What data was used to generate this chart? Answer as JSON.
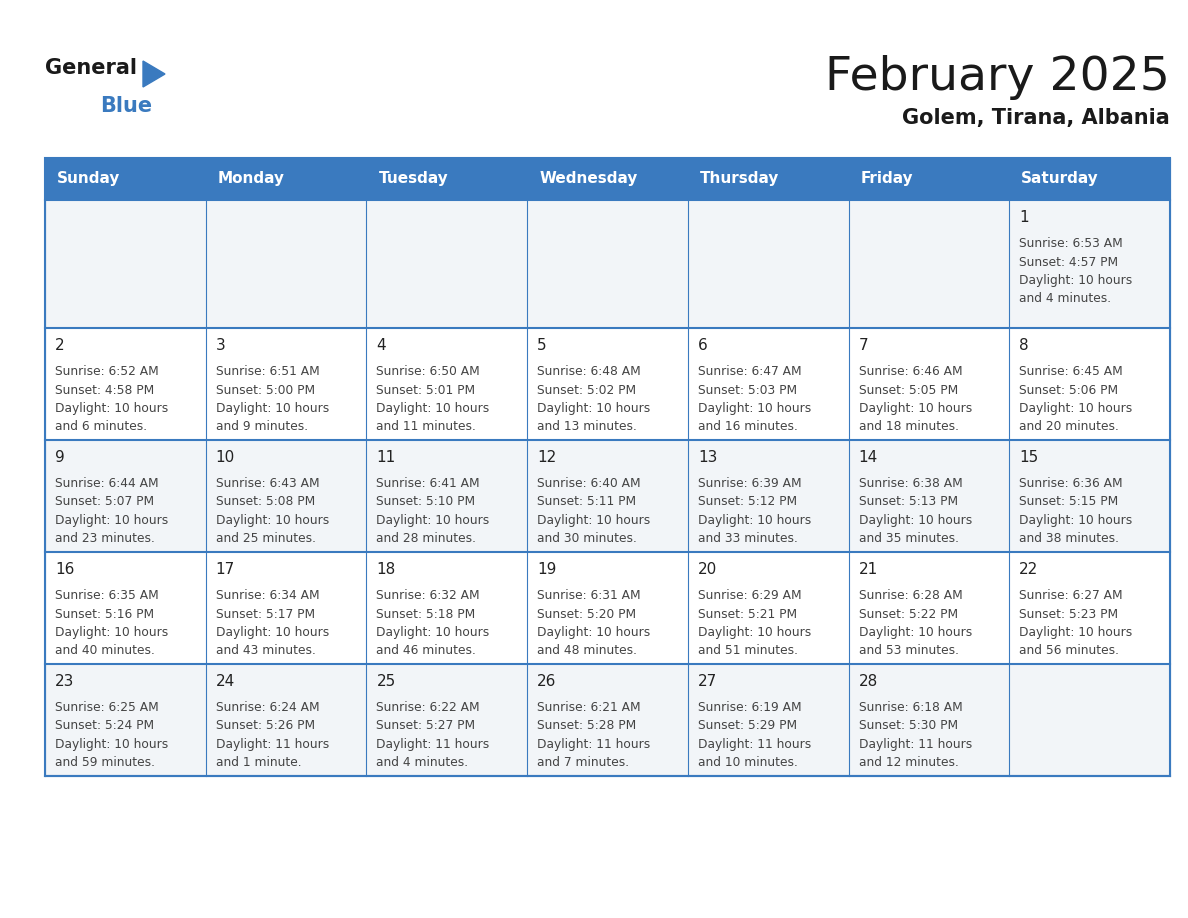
{
  "title": "February 2025",
  "subtitle": "Golem, Tirana, Albania",
  "header_color": "#3a7abf",
  "header_text_color": "#ffffff",
  "days_of_week": [
    "Sunday",
    "Monday",
    "Tuesday",
    "Wednesday",
    "Thursday",
    "Friday",
    "Saturday"
  ],
  "background_color": "#ffffff",
  "cell_bg_odd": "#f2f5f8",
  "cell_bg_even": "#ffffff",
  "border_color": "#3a7abf",
  "text_color": "#444444",
  "day_num_color": "#222222",
  "calendar_data": [
    [
      null,
      null,
      null,
      null,
      null,
      null,
      {
        "day": "1",
        "sunrise": "6:53 AM",
        "sunset": "4:57 PM",
        "daylight_line1": "Daylight: 10 hours",
        "daylight_line2": "and 4 minutes."
      }
    ],
    [
      {
        "day": "2",
        "sunrise": "6:52 AM",
        "sunset": "4:58 PM",
        "daylight_line1": "Daylight: 10 hours",
        "daylight_line2": "and 6 minutes."
      },
      {
        "day": "3",
        "sunrise": "6:51 AM",
        "sunset": "5:00 PM",
        "daylight_line1": "Daylight: 10 hours",
        "daylight_line2": "and 9 minutes."
      },
      {
        "day": "4",
        "sunrise": "6:50 AM",
        "sunset": "5:01 PM",
        "daylight_line1": "Daylight: 10 hours",
        "daylight_line2": "and 11 minutes."
      },
      {
        "day": "5",
        "sunrise": "6:48 AM",
        "sunset": "5:02 PM",
        "daylight_line1": "Daylight: 10 hours",
        "daylight_line2": "and 13 minutes."
      },
      {
        "day": "6",
        "sunrise": "6:47 AM",
        "sunset": "5:03 PM",
        "daylight_line1": "Daylight: 10 hours",
        "daylight_line2": "and 16 minutes."
      },
      {
        "day": "7",
        "sunrise": "6:46 AM",
        "sunset": "5:05 PM",
        "daylight_line1": "Daylight: 10 hours",
        "daylight_line2": "and 18 minutes."
      },
      {
        "day": "8",
        "sunrise": "6:45 AM",
        "sunset": "5:06 PM",
        "daylight_line1": "Daylight: 10 hours",
        "daylight_line2": "and 20 minutes."
      }
    ],
    [
      {
        "day": "9",
        "sunrise": "6:44 AM",
        "sunset": "5:07 PM",
        "daylight_line1": "Daylight: 10 hours",
        "daylight_line2": "and 23 minutes."
      },
      {
        "day": "10",
        "sunrise": "6:43 AM",
        "sunset": "5:08 PM",
        "daylight_line1": "Daylight: 10 hours",
        "daylight_line2": "and 25 minutes."
      },
      {
        "day": "11",
        "sunrise": "6:41 AM",
        "sunset": "5:10 PM",
        "daylight_line1": "Daylight: 10 hours",
        "daylight_line2": "and 28 minutes."
      },
      {
        "day": "12",
        "sunrise": "6:40 AM",
        "sunset": "5:11 PM",
        "daylight_line1": "Daylight: 10 hours",
        "daylight_line2": "and 30 minutes."
      },
      {
        "day": "13",
        "sunrise": "6:39 AM",
        "sunset": "5:12 PM",
        "daylight_line1": "Daylight: 10 hours",
        "daylight_line2": "and 33 minutes."
      },
      {
        "day": "14",
        "sunrise": "6:38 AM",
        "sunset": "5:13 PM",
        "daylight_line1": "Daylight: 10 hours",
        "daylight_line2": "and 35 minutes."
      },
      {
        "day": "15",
        "sunrise": "6:36 AM",
        "sunset": "5:15 PM",
        "daylight_line1": "Daylight: 10 hours",
        "daylight_line2": "and 38 minutes."
      }
    ],
    [
      {
        "day": "16",
        "sunrise": "6:35 AM",
        "sunset": "5:16 PM",
        "daylight_line1": "Daylight: 10 hours",
        "daylight_line2": "and 40 minutes."
      },
      {
        "day": "17",
        "sunrise": "6:34 AM",
        "sunset": "5:17 PM",
        "daylight_line1": "Daylight: 10 hours",
        "daylight_line2": "and 43 minutes."
      },
      {
        "day": "18",
        "sunrise": "6:32 AM",
        "sunset": "5:18 PM",
        "daylight_line1": "Daylight: 10 hours",
        "daylight_line2": "and 46 minutes."
      },
      {
        "day": "19",
        "sunrise": "6:31 AM",
        "sunset": "5:20 PM",
        "daylight_line1": "Daylight: 10 hours",
        "daylight_line2": "and 48 minutes."
      },
      {
        "day": "20",
        "sunrise": "6:29 AM",
        "sunset": "5:21 PM",
        "daylight_line1": "Daylight: 10 hours",
        "daylight_line2": "and 51 minutes."
      },
      {
        "day": "21",
        "sunrise": "6:28 AM",
        "sunset": "5:22 PM",
        "daylight_line1": "Daylight: 10 hours",
        "daylight_line2": "and 53 minutes."
      },
      {
        "day": "22",
        "sunrise": "6:27 AM",
        "sunset": "5:23 PM",
        "daylight_line1": "Daylight: 10 hours",
        "daylight_line2": "and 56 minutes."
      }
    ],
    [
      {
        "day": "23",
        "sunrise": "6:25 AM",
        "sunset": "5:24 PM",
        "daylight_line1": "Daylight: 10 hours",
        "daylight_line2": "and 59 minutes."
      },
      {
        "day": "24",
        "sunrise": "6:24 AM",
        "sunset": "5:26 PM",
        "daylight_line1": "Daylight: 11 hours",
        "daylight_line2": "and 1 minute."
      },
      {
        "day": "25",
        "sunrise": "6:22 AM",
        "sunset": "5:27 PM",
        "daylight_line1": "Daylight: 11 hours",
        "daylight_line2": "and 4 minutes."
      },
      {
        "day": "26",
        "sunrise": "6:21 AM",
        "sunset": "5:28 PM",
        "daylight_line1": "Daylight: 11 hours",
        "daylight_line2": "and 7 minutes."
      },
      {
        "day": "27",
        "sunrise": "6:19 AM",
        "sunset": "5:29 PM",
        "daylight_line1": "Daylight: 11 hours",
        "daylight_line2": "and 10 minutes."
      },
      {
        "day": "28",
        "sunrise": "6:18 AM",
        "sunset": "5:30 PM",
        "daylight_line1": "Daylight: 11 hours",
        "daylight_line2": "and 12 minutes."
      },
      null
    ]
  ],
  "logo_general_color": "#1a1a1a",
  "logo_blue_color": "#3a7abf",
  "logo_triangle_color": "#3a7abf"
}
